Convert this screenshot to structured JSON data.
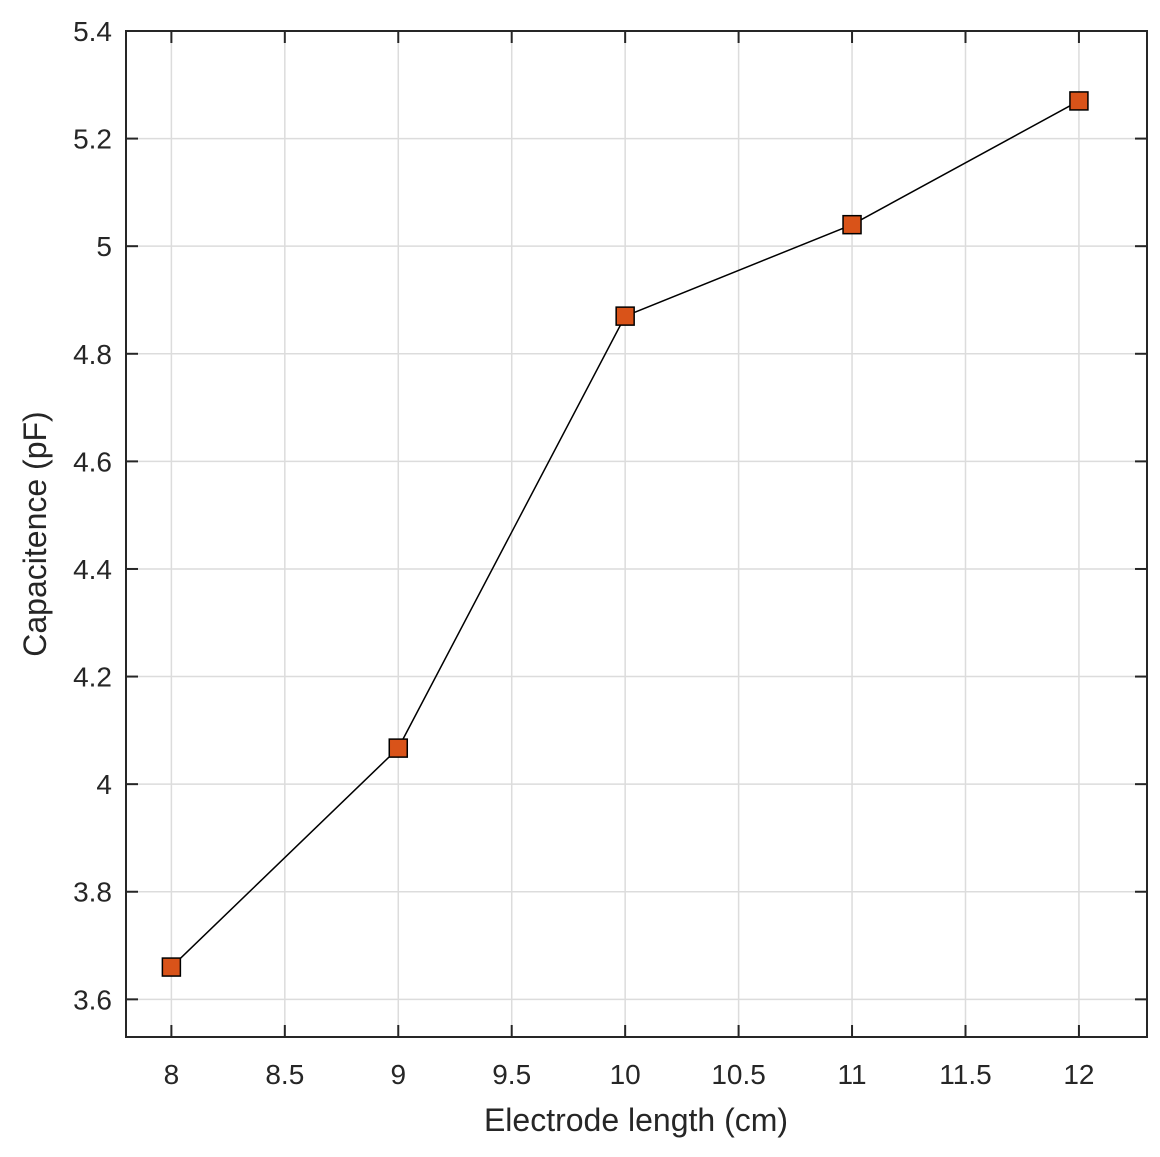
{
  "chart_data": {
    "type": "line",
    "title": "",
    "xlabel": "Electrode length (cm)",
    "ylabel": "Capacitence (pF)",
    "xlim": [
      7.8,
      12.3
    ],
    "ylim": [
      3.53,
      5.4
    ],
    "xticks": [
      8,
      8.5,
      9,
      9.5,
      10,
      10.5,
      11,
      11.5,
      12
    ],
    "xtick_labels": [
      "8",
      "8.5",
      "9",
      "9.5",
      "10",
      "10.5",
      "11",
      "11.5",
      "12"
    ],
    "yticks": [
      3.6,
      3.8,
      4.0,
      4.2,
      4.4,
      4.6,
      4.8,
      5.0,
      5.2,
      5.4
    ],
    "ytick_labels": [
      "3.6",
      "3.8",
      "4",
      "4.2",
      "4.4",
      "4.6",
      "4.8",
      "5",
      "5.2",
      "5.4"
    ],
    "grid": true,
    "series": [
      {
        "x": [
          8,
          9,
          10,
          11,
          12
        ],
        "y": [
          3.66,
          4.067,
          4.87,
          5.04,
          5.27
        ],
        "marker": "square",
        "line_color": "#000000",
        "marker_color": "#d95319"
      }
    ]
  }
}
